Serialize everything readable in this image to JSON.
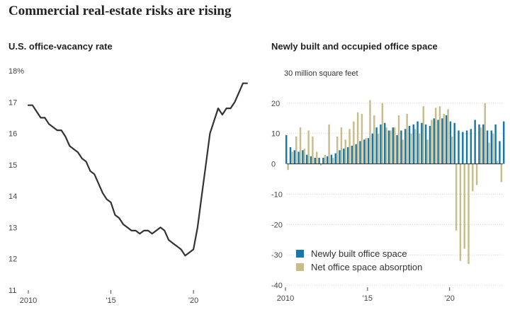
{
  "title": "Commercial real-estate risks are rising",
  "colors": {
    "line": "#333333",
    "newly_built": "#1778a8",
    "absorption": "#c6bc8c",
    "grid": "#d0d0d0",
    "zero": "#333333"
  },
  "chart_data": [
    {
      "type": "line",
      "title": "U.S. office-vacancy rate",
      "x_ticks": [
        {
          "value": 2010,
          "label": "2010"
        },
        {
          "value": 2015,
          "label": "'15"
        },
        {
          "value": 2020,
          "label": "'20"
        }
      ],
      "y_ticks": [
        {
          "value": 18,
          "label": "18%"
        },
        {
          "value": 17,
          "label": "17"
        },
        {
          "value": 16,
          "label": "16"
        },
        {
          "value": 15,
          "label": "15"
        },
        {
          "value": 14,
          "label": "14"
        },
        {
          "value": 13,
          "label": "13"
        },
        {
          "value": 12,
          "label": "12"
        },
        {
          "value": 11,
          "label": "11"
        }
      ],
      "xlim": [
        2010,
        2023.3
      ],
      "ylim": [
        11,
        18
      ],
      "grid": false,
      "series": [
        {
          "x": [
            2010.0,
            2010.25,
            2010.5,
            2010.75,
            2011.0,
            2011.25,
            2011.5,
            2011.75,
            2012.0,
            2012.25,
            2012.5,
            2012.75,
            2013.0,
            2013.25,
            2013.5,
            2013.75,
            2014.0,
            2014.25,
            2014.5,
            2014.75,
            2015.0,
            2015.25,
            2015.5,
            2015.75,
            2016.0,
            2016.25,
            2016.5,
            2016.75,
            2017.0,
            2017.25,
            2017.5,
            2017.75,
            2018.0,
            2018.25,
            2018.5,
            2018.75,
            2019.0,
            2019.25,
            2019.5,
            2019.75,
            2020.0,
            2020.25,
            2020.5,
            2020.75,
            2021.0,
            2021.25,
            2021.5,
            2021.75,
            2022.0,
            2022.25,
            2022.5,
            2022.75,
            2023.0,
            2023.25
          ],
          "y": [
            16.9,
            16.9,
            16.7,
            16.5,
            16.5,
            16.3,
            16.2,
            16.1,
            16.1,
            15.9,
            15.6,
            15.5,
            15.4,
            15.2,
            15.1,
            14.8,
            14.7,
            14.4,
            14.1,
            13.9,
            13.8,
            13.4,
            13.3,
            13.1,
            13.0,
            12.9,
            12.9,
            12.8,
            12.9,
            12.9,
            12.8,
            12.9,
            13.0,
            12.9,
            12.6,
            12.5,
            12.4,
            12.3,
            12.1,
            12.2,
            12.3,
            13.0,
            14.0,
            15.0,
            16.0,
            16.4,
            16.8,
            16.6,
            16.8,
            16.8,
            17.0,
            17.3,
            17.6,
            17.6
          ]
        }
      ]
    },
    {
      "type": "bar",
      "title": "Newly built and occupied office space",
      "unit_label": "30 million square feet",
      "x_ticks": [
        {
          "value": 2010,
          "label": "2010"
        },
        {
          "value": 2015,
          "label": "'15"
        },
        {
          "value": 2020,
          "label": "'20"
        }
      ],
      "y_ticks": [
        {
          "value": 20,
          "label": "20"
        },
        {
          "value": 10,
          "label": "10"
        },
        {
          "value": 0,
          "label": "0"
        },
        {
          "value": -10,
          "label": "-10"
        },
        {
          "value": -20,
          "label": "-20"
        },
        {
          "value": -30,
          "label": "-30"
        },
        {
          "value": -40,
          "label": "-40"
        }
      ],
      "xlim": [
        2010,
        2023.25
      ],
      "ylim": [
        -40,
        30
      ],
      "grid": true,
      "legend_position": "bottom-left",
      "x_start": 2010.0,
      "x_step": 0.25,
      "series": [
        {
          "name": "Newly built office space",
          "color": "#1778a8",
          "values": [
            9.5,
            5.5,
            4.5,
            4.0,
            4.5,
            3.0,
            2.5,
            2.0,
            2.0,
            2.0,
            2.5,
            3.0,
            3.5,
            4.5,
            5.0,
            5.5,
            6.0,
            6.5,
            7.5,
            8.0,
            8.5,
            10.0,
            12.0,
            13.0,
            13.5,
            11.0,
            12.0,
            9.5,
            11.0,
            11.5,
            12.5,
            13.0,
            14.0,
            13.5,
            13.0,
            12.5,
            15.0,
            14.5,
            15.0,
            16.0,
            14.0,
            13.5,
            11.0,
            10.5,
            11.0,
            11.5,
            14.5,
            13.0,
            13.0,
            11.0,
            11.0,
            13.0,
            7.5,
            14.0
          ]
        },
        {
          "name": "Net office space absorption",
          "color": "#c6bc8c",
          "values": [
            -2.0,
            4.0,
            9.0,
            12.0,
            5.0,
            11.0,
            9.0,
            4.0,
            -0.5,
            3.0,
            13.0,
            2.0,
            9.0,
            12.0,
            8.0,
            11.5,
            14.0,
            17.0,
            16.5,
            8.5,
            21.0,
            16.0,
            10.0,
            20.0,
            12.0,
            11.0,
            12.0,
            16.0,
            8.0,
            16.5,
            10.0,
            11.5,
            10.0,
            19.0,
            8.0,
            14.5,
            18.5,
            19.0,
            16.5,
            18.0,
            9.0,
            -22.0,
            -32.0,
            -28.0,
            -33.0,
            -9.0,
            -7.0,
            12.0,
            20.0,
            7.0,
            10.0,
            1.0,
            -6.0,
            0.0
          ]
        }
      ]
    }
  ]
}
